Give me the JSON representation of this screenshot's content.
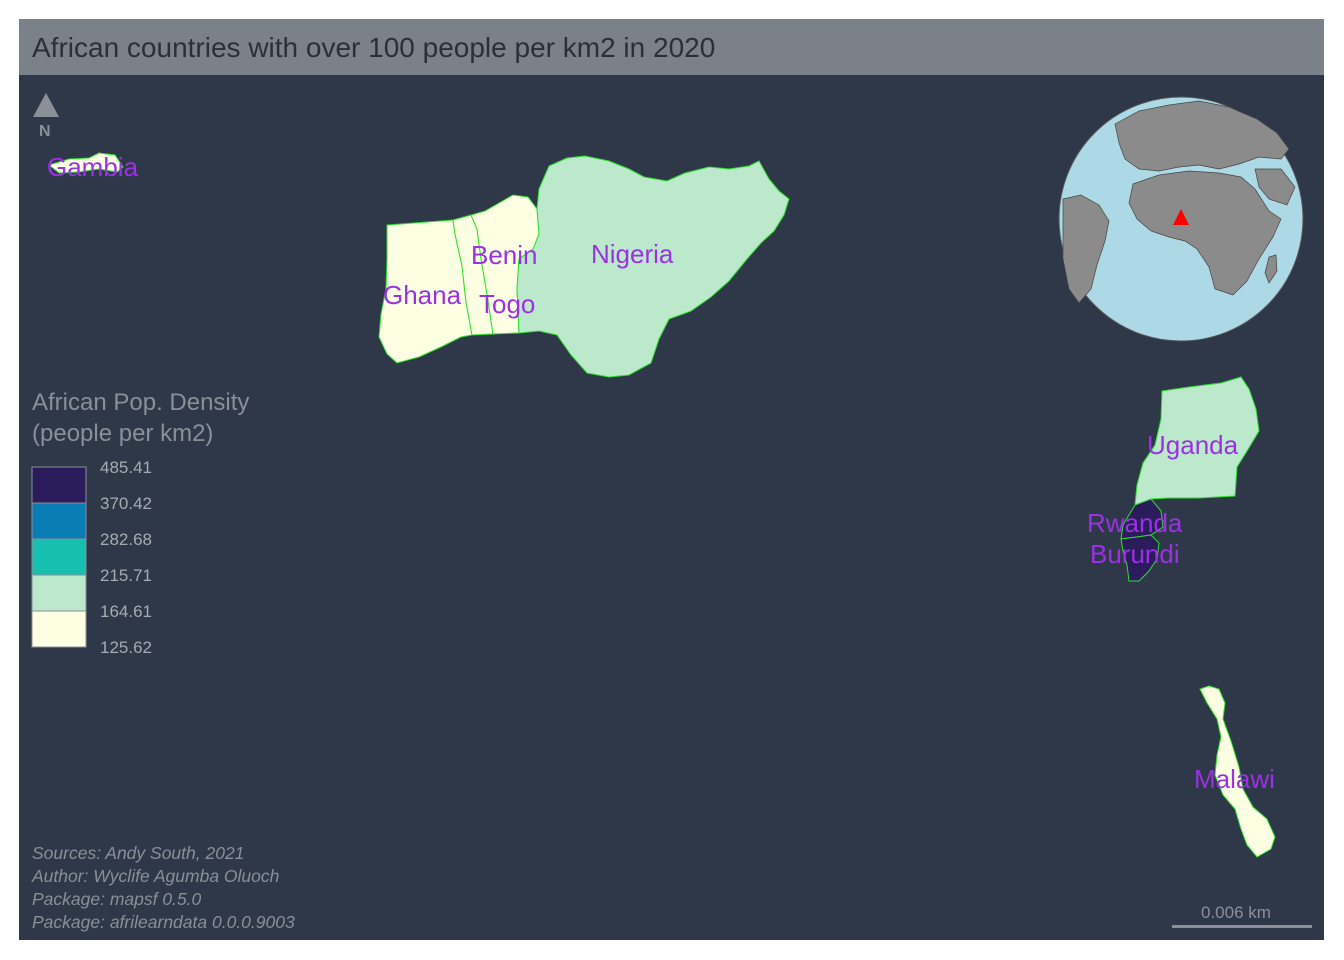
{
  "title": "African countries with over 100 people per km2 in 2020",
  "north_arrow": {
    "label": "N",
    "icon": "north-arrow-icon"
  },
  "countries": [
    {
      "name": "Gambia",
      "density_class": "125.62-164.61"
    },
    {
      "name": "Ghana",
      "density_class": "125.62-164.61"
    },
    {
      "name": "Togo",
      "density_class": "125.62-164.61"
    },
    {
      "name": "Benin",
      "density_class": "125.62-164.61"
    },
    {
      "name": "Nigeria",
      "density_class": "164.61-215.71"
    },
    {
      "name": "Uganda",
      "density_class": "164.61-215.71"
    },
    {
      "name": "Rwanda",
      "density_class": "370.42-485.41"
    },
    {
      "name": "Burundi",
      "density_class": "370.42-485.41"
    },
    {
      "name": "Malawi",
      "density_class": "125.62-164.61"
    }
  ],
  "legend": {
    "title_line1": "African Pop. Density",
    "title_line2": "(people per km2)",
    "breaks": [
      "485.41",
      "370.42",
      "282.68",
      "215.71",
      "164.61",
      "125.62"
    ],
    "colors": [
      "#2b1d5b",
      "#0a7cb4",
      "#17bfae",
      "#bce9cb",
      "#fdffe3"
    ]
  },
  "credits": [
    "Sources: Andy South, 2021",
    "Author: Wyclife Agumba Oluoch",
    "Package: mapsf 0.5.0",
    "Package: afrilearndata 0.0.0.9003"
  ],
  "scale_bar": {
    "label": "0.006 km"
  },
  "colors": {
    "background": "#2e3848",
    "title_bar": "#7b8189",
    "label": "#9b30e6",
    "border": "#2ee02e",
    "globe_ocean": "#add8e6",
    "globe_land": "#8b8b8b",
    "globe_marker": "#ff0000"
  }
}
